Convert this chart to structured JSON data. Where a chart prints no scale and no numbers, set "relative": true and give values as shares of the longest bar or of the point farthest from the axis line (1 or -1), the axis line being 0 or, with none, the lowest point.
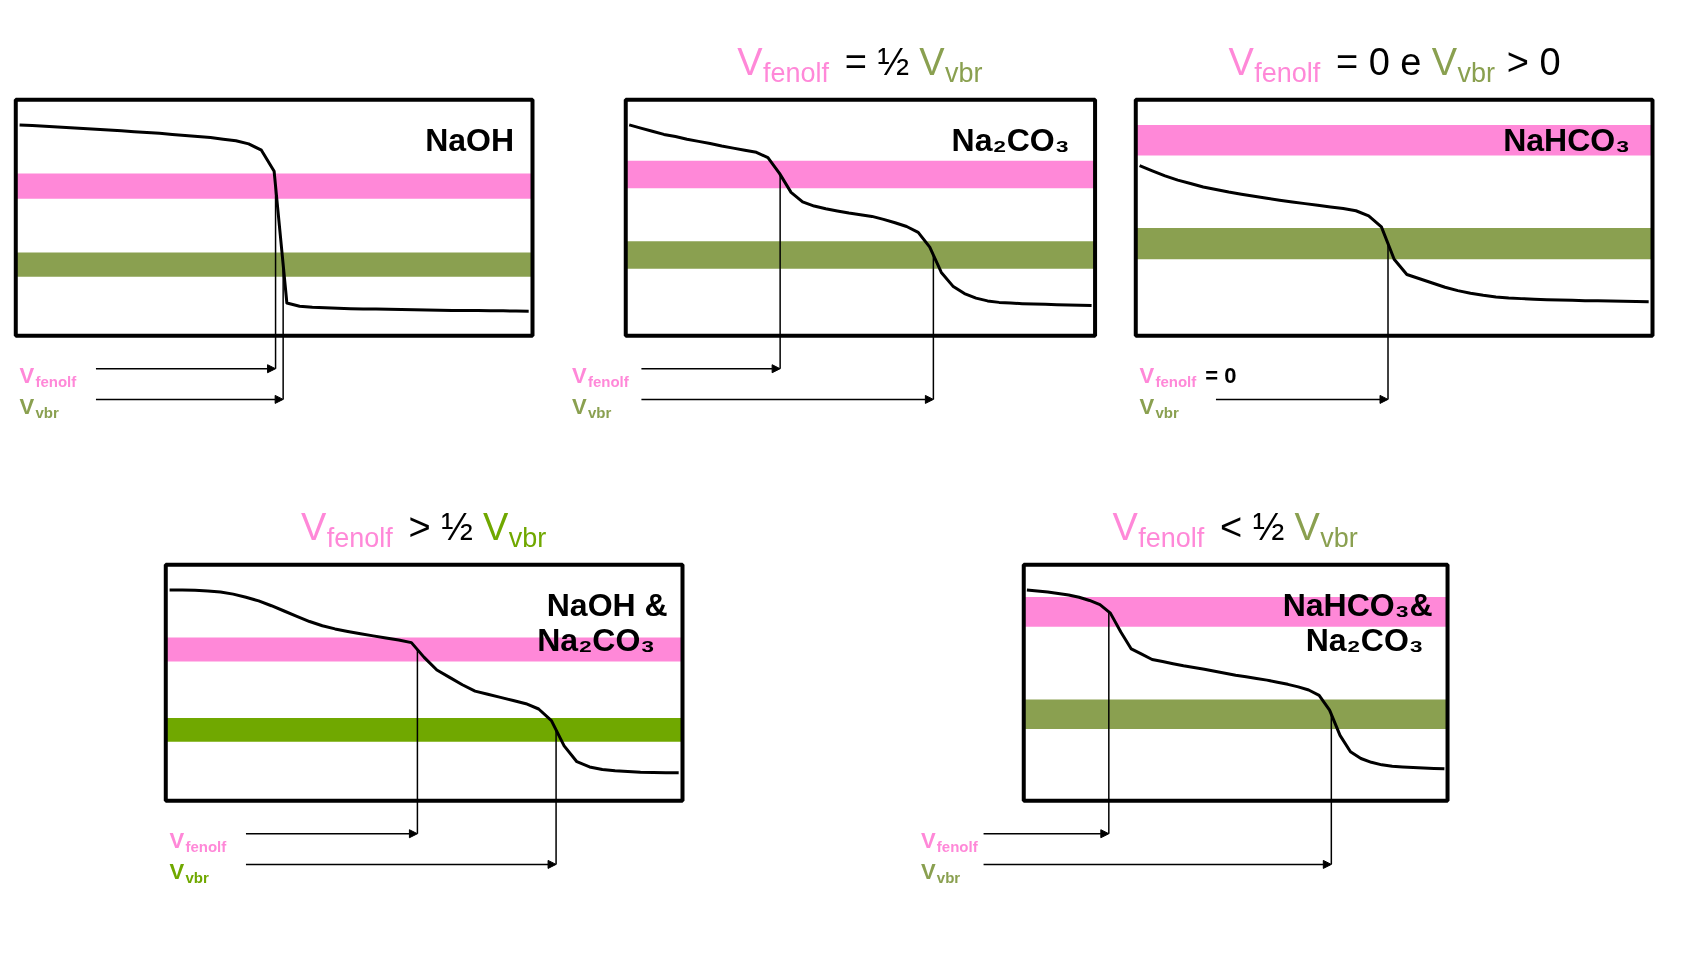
{
  "chart_data": [
    {
      "type": "line",
      "relative": true,
      "categories": [
        null,
        null,
        null,
        null,
        null,
        null,
        null,
        null,
        null,
        null,
        null,
        null,
        null,
        null,
        null,
        null,
        null,
        null,
        null,
        null,
        null,
        null,
        null,
        null,
        null,
        null,
        null,
        null,
        null,
        null,
        null,
        null,
        null,
        null,
        null,
        null,
        null,
        null,
        null,
        null,
        null
      ],
      "series": [
        {
          "color": "#000000",
          "values": [
            1.0,
            0.997,
            0.994,
            0.99,
            0.987,
            0.983,
            0.98,
            0.976,
            0.972,
            0.968,
            0.964,
            0.96,
            0.955,
            0.95,
            0.945,
            0.94,
            0.932,
            0.925,
            0.91,
            0.88,
            0.78,
            0.155,
            0.14,
            0.135,
            0.132,
            0.13,
            0.128,
            0.127,
            0.126,
            0.125,
            0.124,
            0.123,
            0.122,
            0.121,
            0.12,
            0.12,
            0.119,
            0.118,
            0.118,
            0.117,
            0.116
          ]
        }
      ],
      "bands": [
        {
          "axis": "y",
          "from": 0.65,
          "to": 0.77,
          "color": "#ff88d8"
        },
        {
          "axis": "y",
          "from": 0.28,
          "to": 0.395,
          "color": "#8aa050"
        }
      ],
      "annotations": [
        "NaOH",
        "V$_{fenolf}$",
        "V$_{vbr}$"
      ]
    },
    {
      "type": "line",
      "relative": true,
      "title": "V$_{fenolf}$ = ½ V$_{vbr}$",
      "categories": [
        null,
        null,
        null,
        null,
        null,
        null,
        null,
        null,
        null,
        null,
        null,
        null,
        null,
        null,
        null,
        null,
        null,
        null,
        null,
        null,
        null,
        null,
        null,
        null,
        null,
        null,
        null,
        null,
        null,
        null,
        null,
        null,
        null,
        null,
        null,
        null,
        null,
        null,
        null,
        null,
        null
      ],
      "series": [
        {
          "color": "#000000",
          "values": [
            1.0,
            0.985,
            0.97,
            0.955,
            0.945,
            0.932,
            0.922,
            0.912,
            0.9,
            0.89,
            0.88,
            0.87,
            0.845,
            0.77,
            0.68,
            0.635,
            0.615,
            0.602,
            0.592,
            0.582,
            0.574,
            0.566,
            0.552,
            0.536,
            0.518,
            0.49,
            0.42,
            0.3,
            0.235,
            0.2,
            0.178,
            0.165,
            0.158,
            0.155,
            0.152,
            0.15,
            0.149,
            0.147,
            0.146,
            0.144,
            0.143
          ]
        }
      ],
      "bands": [
        {
          "axis": "y",
          "from": 0.7,
          "to": 0.83,
          "color": "#ff88d8"
        },
        {
          "axis": "y",
          "from": 0.317,
          "to": 0.448,
          "color": "#8aa050"
        }
      ],
      "annotations": [
        "Na₂CO₃",
        "V$_{fenolf}$",
        "V$_{vbr}$"
      ]
    },
    {
      "type": "line",
      "relative": true,
      "title": "V$_{fenolf}$ = 0 e V$_{vbr}$ > 0",
      "categories": [
        null,
        null,
        null,
        null,
        null,
        null,
        null,
        null,
        null,
        null,
        null,
        null,
        null,
        null,
        null,
        null,
        null,
        null,
        null,
        null,
        null,
        null,
        null,
        null,
        null,
        null,
        null,
        null,
        null,
        null,
        null,
        null,
        null,
        null,
        null,
        null,
        null,
        null,
        null,
        null,
        null
      ],
      "series": [
        {
          "color": "#000000",
          "values": [
            1.0,
            0.97,
            0.94,
            0.915,
            0.895,
            0.875,
            0.86,
            0.845,
            0.832,
            0.82,
            0.808,
            0.797,
            0.787,
            0.777,
            0.767,
            0.757,
            0.748,
            0.735,
            0.705,
            0.64,
            0.45,
            0.36,
            0.335,
            0.31,
            0.285,
            0.265,
            0.25,
            0.238,
            0.228,
            0.222,
            0.218,
            0.215,
            0.212,
            0.21,
            0.208,
            0.206,
            0.205,
            0.204,
            0.202,
            0.201,
            0.2
          ]
        }
      ],
      "bands": [
        {
          "axis": "y",
          "from": 1.06,
          "to": 1.24,
          "color": "#ff88d8"
        },
        {
          "axis": "y",
          "from": 0.45,
          "to": 0.633,
          "color": "#8aa050"
        }
      ],
      "annotations": [
        "NaHCO₃",
        "V$_{fenolf}$ = 0",
        "V$_{vbr}$"
      ]
    },
    {
      "type": "line",
      "relative": true,
      "title": "V$_{fenolf}$ > ½ V$_{vbr}$",
      "categories": [
        null,
        null,
        null,
        null,
        null,
        null,
        null,
        null,
        null,
        null,
        null,
        null,
        null,
        null,
        null,
        null,
        null,
        null,
        null,
        null,
        null,
        null,
        null,
        null,
        null,
        null,
        null,
        null,
        null,
        null,
        null,
        null,
        null,
        null,
        null,
        null,
        null,
        null,
        null,
        null,
        null
      ],
      "series": [
        {
          "color": "#000000",
          "values": [
            1.0,
            1.0,
            0.998,
            0.995,
            0.99,
            0.98,
            0.965,
            0.948,
            0.925,
            0.9,
            0.875,
            0.85,
            0.83,
            0.815,
            0.803,
            0.792,
            0.782,
            0.772,
            0.762,
            0.75,
            0.68,
            0.62,
            0.585,
            0.55,
            0.52,
            0.505,
            0.49,
            0.475,
            0.46,
            0.435,
            0.38,
            0.26,
            0.185,
            0.16,
            0.148,
            0.142,
            0.138,
            0.135,
            0.134,
            0.133,
            0.132
          ]
        }
      ],
      "bands": [
        {
          "axis": "y",
          "from": 0.66,
          "to": 0.774,
          "color": "#ff88d8"
        },
        {
          "axis": "y",
          "from": 0.28,
          "to": 0.392,
          "color": "#70a800"
        }
      ],
      "annotations": [
        "NaOH &",
        "Na₂CO₃",
        "V$_{fenolf}$",
        "V$_{vbr}$"
      ]
    },
    {
      "type": "line",
      "relative": true,
      "title": "V$_{fenolf}$ < ½ V$_{vbr}$",
      "categories": [
        null,
        null,
        null,
        null,
        null,
        null,
        null,
        null,
        null,
        null,
        null,
        null,
        null,
        null,
        null,
        null,
        null,
        null,
        null,
        null,
        null,
        null,
        null,
        null,
        null,
        null,
        null,
        null,
        null,
        null,
        null,
        null,
        null,
        null,
        null,
        null,
        null,
        null,
        null,
        null,
        null
      ],
      "series": [
        {
          "color": "#000000",
          "values": [
            1.0,
            0.995,
            0.99,
            0.983,
            0.976,
            0.965,
            0.95,
            0.93,
            0.89,
            0.8,
            0.72,
            0.695,
            0.67,
            0.66,
            0.65,
            0.64,
            0.632,
            0.624,
            0.614,
            0.605,
            0.595,
            0.588,
            0.58,
            0.572,
            0.562,
            0.552,
            0.54,
            0.525,
            0.5,
            0.43,
            0.31,
            0.232,
            0.2,
            0.182,
            0.17,
            0.163,
            0.16,
            0.157,
            0.155,
            0.153,
            0.151
          ]
        }
      ],
      "bands": [
        {
          "axis": "y",
          "from": 0.825,
          "to": 0.967,
          "color": "#ff88d8"
        },
        {
          "axis": "y",
          "from": 0.34,
          "to": 0.48,
          "color": "#8aa050"
        }
      ],
      "annotations": [
        "NaHCO₃&",
        "Na₂CO₃",
        "V$_{fenolf}$",
        "V$_{vbr}$"
      ]
    }
  ]
}
